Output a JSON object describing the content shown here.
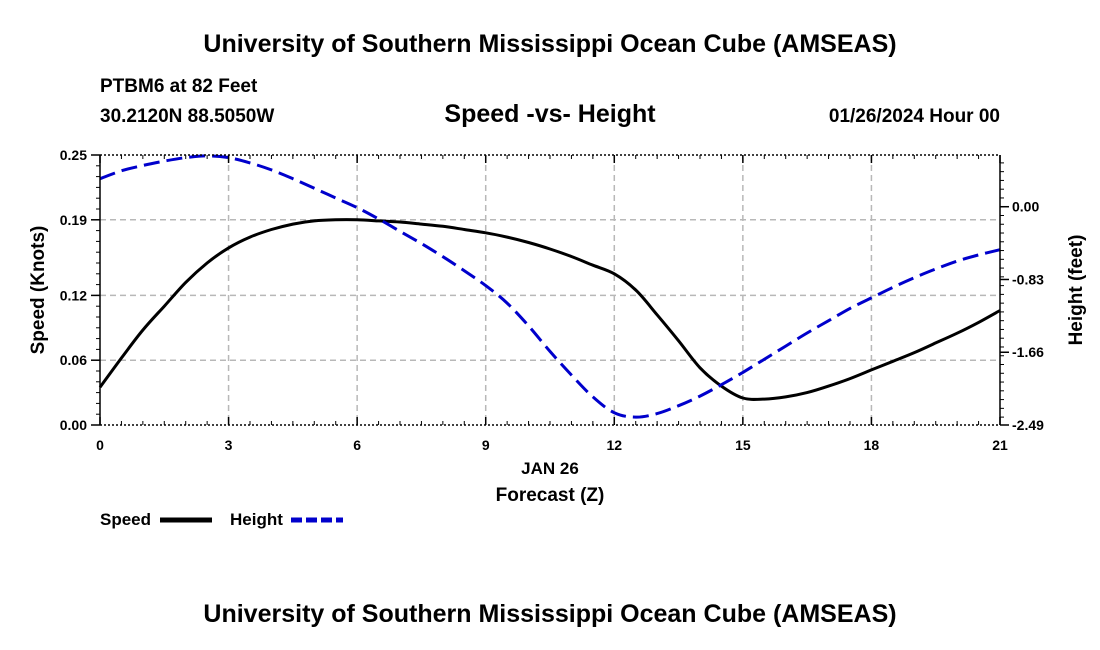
{
  "header": {
    "title": "University of Southern Mississippi Ocean Cube (AMSEAS)",
    "station": "PTBM6 at 82 Feet",
    "coordinates": "30.2120N  88.5050W",
    "datetime": "01/26/2024 Hour 00"
  },
  "footer": {
    "title": "University of Southern Mississippi Ocean Cube (AMSEAS)"
  },
  "chart_data": {
    "type": "line",
    "title": "Speed -vs- Height",
    "xlabel": "Forecast (Z)",
    "xdate_label": "JAN 26",
    "ylabel": "Speed (Knots)",
    "y2label": "Height (feet)",
    "xlim": [
      0,
      21
    ],
    "ylim": [
      0,
      0.25
    ],
    "y2lim": [
      -2.49,
      0.59
    ],
    "x_ticks": [
      0,
      3,
      6,
      9,
      12,
      15,
      18,
      21
    ],
    "y_ticks": [
      0,
      0.06,
      0.12,
      0.19,
      0.25
    ],
    "y_tick_labels": [
      "0.00",
      "0.06",
      "0.12",
      "0.19",
      "0.25"
    ],
    "y2_ticks": [
      -2.49,
      -1.66,
      -0.83,
      0.0
    ],
    "y2_tick_labels": [
      "-2.49",
      "-1.66",
      "-0.83",
      "0.00"
    ],
    "grid": true,
    "series": [
      {
        "name": "Speed",
        "axis": "left",
        "color": "#000000",
        "dash": "solid",
        "x": [
          0,
          0.5,
          1,
          1.5,
          2,
          2.5,
          3,
          3.5,
          4,
          4.5,
          5,
          5.5,
          6,
          6.5,
          7,
          7.5,
          8,
          8.5,
          9,
          9.5,
          10,
          10.5,
          11,
          11.5,
          12,
          12.5,
          13,
          13.5,
          14,
          14.5,
          15,
          15.5,
          16,
          16.5,
          17,
          17.5,
          18,
          18.5,
          19,
          19.5,
          20,
          20.5,
          21
        ],
        "values": [
          0.035,
          0.062,
          0.088,
          0.11,
          0.132,
          0.15,
          0.164,
          0.174,
          0.181,
          0.186,
          0.189,
          0.19,
          0.19,
          0.189,
          0.188,
          0.186,
          0.184,
          0.181,
          0.178,
          0.174,
          0.169,
          0.163,
          0.156,
          0.148,
          0.14,
          0.125,
          0.102,
          0.078,
          0.053,
          0.036,
          0.025,
          0.024,
          0.026,
          0.03,
          0.036,
          0.043,
          0.051,
          0.059,
          0.067,
          0.076,
          0.085,
          0.095,
          0.106
        ]
      },
      {
        "name": "Height",
        "axis": "right",
        "color": "#0000cc",
        "dash": "dashed",
        "x": [
          0,
          0.5,
          1,
          1.5,
          2,
          2.5,
          3,
          3.5,
          4,
          4.5,
          5,
          5.5,
          6,
          6.5,
          7,
          7.5,
          8,
          8.5,
          9,
          9.5,
          10,
          10.5,
          11,
          11.5,
          12,
          12.5,
          13,
          13.5,
          14,
          14.5,
          15,
          15.5,
          16,
          16.5,
          17,
          17.5,
          18,
          18.5,
          19,
          19.5,
          20,
          20.5,
          21
        ],
        "values": [
          0.32,
          0.41,
          0.47,
          0.52,
          0.56,
          0.58,
          0.56,
          0.5,
          0.42,
          0.32,
          0.21,
          0.1,
          -0.01,
          -0.14,
          -0.28,
          -0.42,
          -0.57,
          -0.73,
          -0.9,
          -1.1,
          -1.36,
          -1.65,
          -1.92,
          -2.17,
          -2.35,
          -2.4,
          -2.36,
          -2.27,
          -2.16,
          -2.03,
          -1.89,
          -1.74,
          -1.59,
          -1.44,
          -1.3,
          -1.16,
          -1.04,
          -0.92,
          -0.81,
          -0.71,
          -0.62,
          -0.55,
          -0.49
        ]
      }
    ],
    "legend": {
      "position": "bottom-left",
      "entries": [
        "Speed",
        "Height"
      ]
    }
  }
}
